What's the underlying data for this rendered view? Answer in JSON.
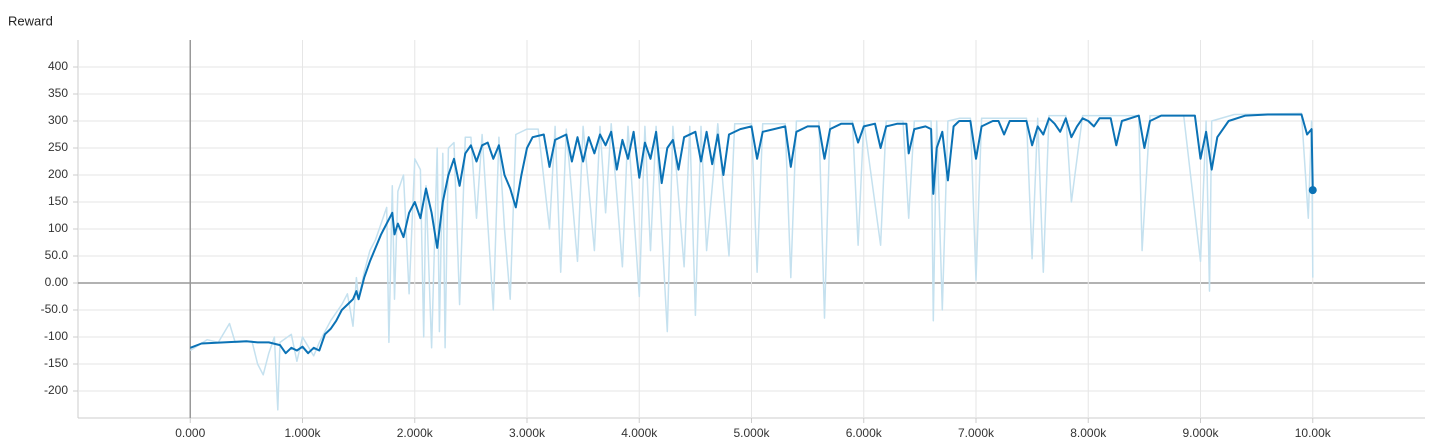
{
  "chart_data": {
    "type": "line",
    "title": "Reward",
    "grid": true,
    "xlim": [
      -1000,
      11000
    ],
    "ylim": [
      -250,
      450
    ],
    "xticks": [
      {
        "value": 0,
        "label": "0.000"
      },
      {
        "value": 1000,
        "label": "1.000k"
      },
      {
        "value": 2000,
        "label": "2.000k"
      },
      {
        "value": 3000,
        "label": "3.000k"
      },
      {
        "value": 4000,
        "label": "4.000k"
      },
      {
        "value": 5000,
        "label": "5.000k"
      },
      {
        "value": 6000,
        "label": "6.000k"
      },
      {
        "value": 7000,
        "label": "7.000k"
      },
      {
        "value": 8000,
        "label": "8.000k"
      },
      {
        "value": 9000,
        "label": "9.000k"
      },
      {
        "value": 10000,
        "label": "10.00k"
      }
    ],
    "yticks": [
      -200,
      -150,
      -100,
      {
        "value": -50,
        "label": "-50.0"
      },
      {
        "value": 0,
        "label": "0.00"
      },
      {
        "value": 50,
        "label": "50.0"
      },
      100,
      150,
      200,
      250,
      300,
      350,
      400
    ],
    "series": [
      {
        "color": "#c5e1ef",
        "x": [
          0,
          150,
          250,
          350,
          400,
          550,
          600,
          650,
          700,
          750,
          780,
          800,
          900,
          950,
          1000,
          1100,
          1150,
          1250,
          1350,
          1400,
          1450,
          1480,
          1500,
          1550,
          1600,
          1650,
          1700,
          1750,
          1770,
          1800,
          1820,
          1850,
          1900,
          1950,
          2000,
          2050,
          2080,
          2100,
          2150,
          2200,
          2220,
          2250,
          2270,
          2300,
          2350,
          2400,
          2450,
          2500,
          2550,
          2600,
          2700,
          2750,
          2800,
          2850,
          2900,
          3000,
          3100,
          3200,
          3250,
          3300,
          3350,
          3450,
          3500,
          3600,
          3650,
          3700,
          3750,
          3850,
          3900,
          4000,
          4050,
          4100,
          4150,
          4250,
          4300,
          4400,
          4450,
          4500,
          4550,
          4600,
          4700,
          4800,
          4850,
          5000,
          5050,
          5100,
          5300,
          5350,
          5400,
          5500,
          5600,
          5650,
          5700,
          5900,
          5950,
          6000,
          6150,
          6200,
          6350,
          6400,
          6450,
          6600,
          6620,
          6650,
          6700,
          6750,
          6850,
          6950,
          7000,
          7050,
          7200,
          7350,
          7450,
          7500,
          7550,
          7600,
          7650,
          7800,
          7850,
          7950,
          8100,
          8200,
          8450,
          8480,
          8550,
          8700,
          8850,
          9000,
          9050,
          9080,
          9100,
          9300,
          9600,
          9900,
          9960,
          9990,
          10000
        ],
        "values": [
          -125,
          -105,
          -110,
          -75,
          -110,
          -108,
          -150,
          -170,
          -130,
          -100,
          -235,
          -110,
          -95,
          -145,
          -100,
          -135,
          -110,
          -70,
          -40,
          -20,
          -80,
          10,
          -30,
          20,
          60,
          80,
          110,
          140,
          -110,
          180,
          -30,
          170,
          200,
          -20,
          230,
          210,
          -100,
          180,
          -120,
          250,
          -90,
          240,
          -120,
          250,
          260,
          -40,
          270,
          270,
          120,
          275,
          -50,
          270,
          100,
          -30,
          275,
          285,
          285,
          100,
          290,
          20,
          285,
          40,
          290,
          60,
          290,
          130,
          295,
          30,
          290,
          -25,
          290,
          60,
          290,
          -90,
          290,
          30,
          290,
          -60,
          290,
          60,
          295,
          50,
          295,
          295,
          20,
          295,
          295,
          10,
          300,
          300,
          300,
          -65,
          300,
          300,
          70,
          300,
          70,
          300,
          300,
          120,
          300,
          300,
          -70,
          300,
          -50,
          300,
          305,
          305,
          5,
          305,
          305,
          305,
          305,
          45,
          305,
          20,
          310,
          310,
          150,
          310,
          310,
          310,
          310,
          60,
          310,
          310,
          310,
          40,
          300,
          -15,
          300,
          312,
          313,
          314,
          120,
          300,
          10
        ]
      },
      {
        "color": "#0b72b5",
        "end_marker": true,
        "x": [
          0,
          100,
          300,
          500,
          600,
          700,
          800,
          850,
          900,
          950,
          1000,
          1050,
          1100,
          1150,
          1200,
          1250,
          1300,
          1350,
          1400,
          1450,
          1480,
          1500,
          1550,
          1600,
          1650,
          1700,
          1750,
          1800,
          1820,
          1850,
          1900,
          1950,
          2000,
          2050,
          2100,
          2150,
          2200,
          2250,
          2300,
          2350,
          2400,
          2450,
          2500,
          2550,
          2600,
          2650,
          2700,
          2750,
          2800,
          2850,
          2900,
          2950,
          3000,
          3050,
          3150,
          3200,
          3250,
          3350,
          3400,
          3450,
          3500,
          3550,
          3600,
          3650,
          3700,
          3750,
          3800,
          3850,
          3900,
          3950,
          4000,
          4050,
          4100,
          4150,
          4200,
          4250,
          4300,
          4350,
          4400,
          4500,
          4550,
          4600,
          4650,
          4700,
          4750,
          4800,
          4900,
          5000,
          5050,
          5100,
          5200,
          5300,
          5350,
          5400,
          5500,
          5600,
          5650,
          5700,
          5800,
          5900,
          5950,
          6000,
          6100,
          6150,
          6200,
          6300,
          6380,
          6400,
          6450,
          6550,
          6600,
          6620,
          6650,
          6700,
          6750,
          6800,
          6850,
          6950,
          7000,
          7050,
          7150,
          7200,
          7250,
          7300,
          7400,
          7450,
          7500,
          7550,
          7600,
          7650,
          7700,
          7750,
          7800,
          7850,
          7900,
          7950,
          8000,
          8050,
          8100,
          8200,
          8250,
          8300,
          8450,
          8500,
          8550,
          8650,
          8850,
          8950,
          9000,
          9050,
          9100,
          9150,
          9250,
          9400,
          9600,
          9800,
          9900,
          9950,
          9990,
          10000
        ],
        "values": [
          -120,
          -112,
          -110,
          -108,
          -110,
          -110,
          -115,
          -130,
          -120,
          -125,
          -118,
          -130,
          -120,
          -125,
          -95,
          -85,
          -70,
          -50,
          -40,
          -30,
          -15,
          -30,
          10,
          40,
          65,
          90,
          110,
          130,
          90,
          110,
          85,
          130,
          150,
          120,
          175,
          130,
          65,
          150,
          200,
          230,
          180,
          240,
          255,
          225,
          255,
          260,
          230,
          255,
          200,
          175,
          140,
          200,
          250,
          270,
          275,
          215,
          265,
          275,
          225,
          270,
          225,
          270,
          240,
          275,
          255,
          280,
          210,
          265,
          230,
          280,
          195,
          260,
          230,
          280,
          185,
          250,
          265,
          210,
          270,
          280,
          225,
          280,
          220,
          275,
          200,
          275,
          285,
          290,
          230,
          280,
          285,
          290,
          215,
          280,
          290,
          290,
          230,
          285,
          295,
          295,
          260,
          290,
          295,
          250,
          290,
          295,
          295,
          240,
          285,
          290,
          285,
          165,
          250,
          280,
          190,
          290,
          300,
          300,
          230,
          290,
          300,
          300,
          275,
          300,
          300,
          300,
          255,
          290,
          275,
          305,
          295,
          280,
          305,
          270,
          290,
          305,
          300,
          290,
          305,
          305,
          255,
          300,
          310,
          250,
          300,
          310,
          310,
          310,
          230,
          280,
          210,
          270,
          300,
          310,
          312,
          312,
          312,
          275,
          285,
          172
        ]
      }
    ]
  }
}
